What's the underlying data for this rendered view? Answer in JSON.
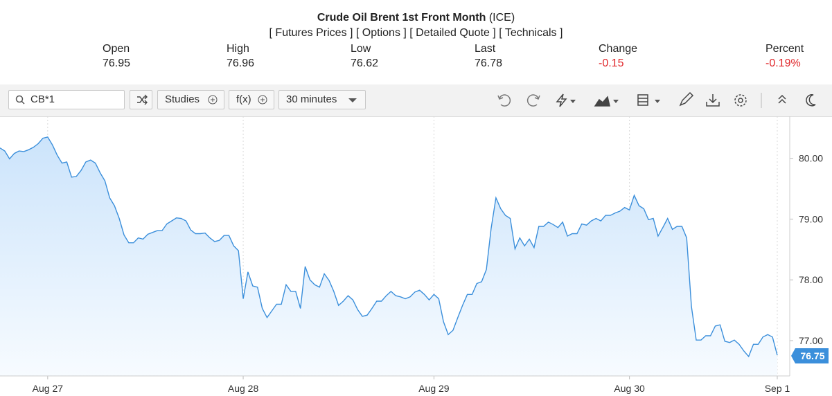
{
  "header": {
    "title": "Crude Oil Brent 1st Front Month",
    "exchange": "(ICE)",
    "links": [
      "[ Futures Prices ]",
      "[ Options ]",
      "[ Detailed Quote ]",
      "[ Technicals ]"
    ],
    "stats": [
      {
        "label": "Open",
        "value": "76.95"
      },
      {
        "label": "High",
        "value": "76.96"
      },
      {
        "label": "Low",
        "value": "76.62"
      },
      {
        "label": "Last",
        "value": "76.78"
      },
      {
        "label": "Change",
        "value": "-0.15"
      },
      {
        "label": "Percent",
        "value": "-0.19%"
      }
    ]
  },
  "toolbar": {
    "symbol": "CB*1",
    "studies": "Studies",
    "fx": "f(x)",
    "interval": "30 minutes"
  },
  "chart_data": {
    "type": "area",
    "color": "#3b8fdb",
    "values": [
      80.17,
      80.12,
      79.99,
      80.08,
      80.12,
      80.11,
      80.14,
      80.18,
      80.24,
      80.33,
      80.35,
      80.22,
      80.05,
      79.92,
      79.94,
      79.69,
      79.7,
      79.8,
      79.94,
      79.97,
      79.92,
      79.76,
      79.63,
      79.35,
      79.22,
      79.01,
      78.74,
      78.61,
      78.61,
      78.69,
      78.67,
      78.75,
      78.78,
      78.81,
      78.81,
      78.92,
      78.97,
      79.02,
      79.01,
      78.97,
      78.82,
      78.76,
      78.76,
      78.77,
      78.69,
      78.63,
      78.65,
      78.73,
      78.73,
      78.56,
      78.48,
      77.69,
      78.13,
      77.9,
      77.88,
      77.53,
      77.38,
      77.49,
      77.6,
      77.6,
      77.92,
      77.81,
      77.81,
      77.53,
      78.22,
      78.0,
      77.92,
      77.88,
      78.1,
      77.99,
      77.81,
      77.58,
      77.65,
      77.74,
      77.67,
      77.51,
      77.4,
      77.42,
      77.53,
      77.65,
      77.65,
      77.74,
      77.81,
      77.74,
      77.72,
      77.69,
      77.72,
      77.8,
      77.83,
      77.76,
      77.67,
      77.76,
      77.69,
      77.31,
      77.1,
      77.17,
      77.38,
      77.58,
      77.76,
      77.76,
      77.94,
      77.97,
      78.17,
      78.85,
      79.35,
      79.17,
      79.06,
      79.01,
      78.51,
      78.69,
      78.56,
      78.67,
      78.53,
      78.88,
      78.88,
      78.95,
      78.91,
      78.86,
      78.95,
      78.72,
      78.76,
      78.76,
      78.92,
      78.9,
      78.97,
      79.01,
      78.97,
      79.06,
      79.06,
      79.1,
      79.13,
      79.19,
      79.15,
      79.39,
      79.22,
      79.17,
      78.99,
      79.01,
      78.72,
      78.86,
      79.01,
      78.83,
      78.88,
      78.88,
      78.69,
      77.56,
      77.01,
      77.01,
      77.08,
      77.08,
      77.24,
      77.26,
      76.99,
      76.97,
      77.01,
      76.94,
      76.83,
      76.74,
      76.94,
      76.94,
      77.06,
      77.1,
      77.06,
      76.76
    ],
    "xlim": [
      0,
      163
    ],
    "xticks": [
      {
        "value": 10,
        "label": "Aug 27"
      },
      {
        "value": 51,
        "label": "Aug 28"
      },
      {
        "value": 91,
        "label": "Aug 29"
      },
      {
        "value": 132,
        "label": "Aug 30"
      },
      {
        "value": 163,
        "label": "Sep 1"
      }
    ],
    "ylim": [
      76.42,
      80.69
    ],
    "yticks": [
      {
        "value": 77,
        "label": "77.00"
      },
      {
        "value": 78,
        "label": "78.00"
      },
      {
        "value": 79,
        "label": "79.00"
      },
      {
        "value": 80,
        "label": "80.00"
      }
    ],
    "last_value": 76.75,
    "grid": true
  }
}
